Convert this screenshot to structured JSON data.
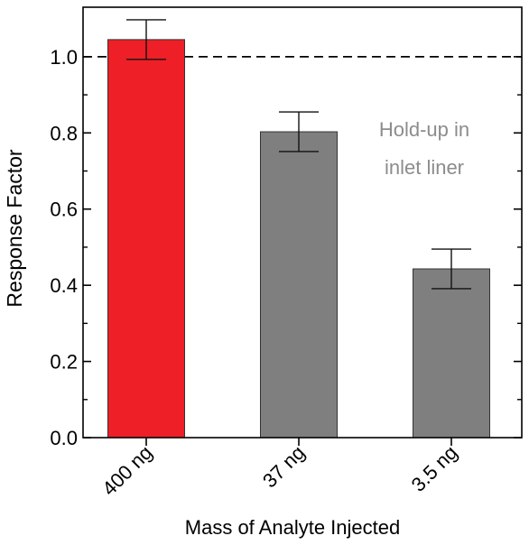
{
  "chart_data": {
    "type": "bar",
    "categories": [
      "400 ng",
      "37 ng",
      "3.5 ng"
    ],
    "values": [
      1.045,
      0.803,
      0.443
    ],
    "errors": [
      0.052,
      0.052,
      0.052
    ],
    "bar_colors": [
      "#ee1f27",
      "#7f7f7f",
      "#7f7f7f"
    ],
    "bar_stroke": "#333333",
    "xlabel": "Mass of Analyte Injected",
    "ylabel": "Response Factor",
    "ylim": [
      0.0,
      1.13
    ],
    "yticks": [
      "0.0",
      "0.2",
      "0.4",
      "0.6",
      "0.8",
      "1.0"
    ],
    "reference_line": {
      "y": 1.0,
      "style": "dashed",
      "color": "#000000"
    },
    "annotation": {
      "lines": [
        "Hold-up in",
        "inlet liner"
      ],
      "color": "#8c8c8c"
    },
    "grid": false,
    "legend": "none"
  }
}
